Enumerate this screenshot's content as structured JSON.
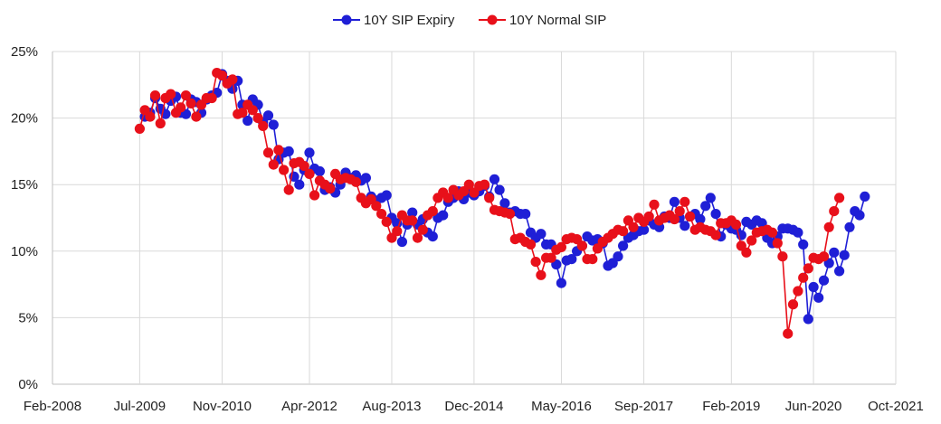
{
  "chart_data": {
    "type": "line",
    "title": "",
    "xlabel": "",
    "ylabel": "",
    "x_axis": {
      "min": "2008-02-01",
      "max": "2021-10-01",
      "ticks": [
        {
          "date": "2008-02-01",
          "label": "Feb-2008"
        },
        {
          "date": "2009-07-01",
          "label": "Jul-2009"
        },
        {
          "date": "2010-11-01",
          "label": "Nov-2010"
        },
        {
          "date": "2012-04-01",
          "label": "Apr-2012"
        },
        {
          "date": "2013-08-01",
          "label": "Aug-2013"
        },
        {
          "date": "2014-12-01",
          "label": "Dec-2014"
        },
        {
          "date": "2016-05-01",
          "label": "May-2016"
        },
        {
          "date": "2017-09-01",
          "label": "Sep-2017"
        },
        {
          "date": "2019-02-01",
          "label": "Feb-2019"
        },
        {
          "date": "2020-06-01",
          "label": "Jun-2020"
        },
        {
          "date": "2021-10-01",
          "label": "Oct-2021"
        }
      ]
    },
    "y_axis": {
      "min": 0,
      "max": 25,
      "ticks": [
        {
          "value": 0,
          "label": "0%"
        },
        {
          "value": 5,
          "label": "5%"
        },
        {
          "value": 10,
          "label": "10%"
        },
        {
          "value": 15,
          "label": "15%"
        },
        {
          "value": 20,
          "label": "20%"
        },
        {
          "value": 25,
          "label": "25%"
        }
      ]
    },
    "grid": true,
    "legend_position": "top-center",
    "series": [
      {
        "name": "10Y SIP Expiry",
        "color": "#1f1fd6",
        "points": [
          [
            "2009-08",
            20.1
          ],
          [
            "2009-09",
            20.4
          ],
          [
            "2009-10",
            21.5
          ],
          [
            "2009-11",
            20.7
          ],
          [
            "2009-12",
            20.3
          ],
          [
            "2010-01",
            21.3
          ],
          [
            "2010-02",
            21.6
          ],
          [
            "2010-03",
            20.4
          ],
          [
            "2010-04",
            20.3
          ],
          [
            "2010-05",
            21.4
          ],
          [
            "2010-06",
            21.2
          ],
          [
            "2010-07",
            20.4
          ],
          [
            "2010-08",
            21.4
          ],
          [
            "2010-09",
            21.7
          ],
          [
            "2010-10",
            21.9
          ],
          [
            "2010-11",
            23.3
          ],
          [
            "2010-12",
            22.8
          ],
          [
            "2011-01",
            22.2
          ],
          [
            "2011-02",
            22.8
          ],
          [
            "2011-03",
            21.0
          ],
          [
            "2011-04",
            19.8
          ],
          [
            "2011-05",
            21.4
          ],
          [
            "2011-06",
            21.0
          ],
          [
            "2011-07",
            19.7
          ],
          [
            "2011-08",
            20.2
          ],
          [
            "2011-09",
            19.5
          ],
          [
            "2011-10",
            16.9
          ],
          [
            "2011-11",
            17.4
          ],
          [
            "2011-12",
            17.5
          ],
          [
            "2012-01",
            15.6
          ],
          [
            "2012-02",
            15.0
          ],
          [
            "2012-03",
            16.1
          ],
          [
            "2012-04",
            17.4
          ],
          [
            "2012-05",
            16.2
          ],
          [
            "2012-06",
            16.0
          ],
          [
            "2012-07",
            14.6
          ],
          [
            "2012-08",
            14.8
          ],
          [
            "2012-09",
            14.4
          ],
          [
            "2012-10",
            15.0
          ],
          [
            "2012-11",
            15.9
          ],
          [
            "2012-12",
            15.5
          ],
          [
            "2013-01",
            15.7
          ],
          [
            "2013-02",
            15.3
          ],
          [
            "2013-03",
            15.5
          ],
          [
            "2013-04",
            14.1
          ],
          [
            "2013-05",
            13.8
          ],
          [
            "2013-06",
            14.0
          ],
          [
            "2013-07",
            14.2
          ],
          [
            "2013-08",
            12.5
          ],
          [
            "2013-09",
            12.1
          ],
          [
            "2013-10",
            10.7
          ],
          [
            "2013-11",
            12.0
          ],
          [
            "2013-12",
            12.9
          ],
          [
            "2014-01",
            12.0
          ],
          [
            "2014-02",
            12.4
          ],
          [
            "2014-03",
            11.4
          ],
          [
            "2014-04",
            11.1
          ],
          [
            "2014-05",
            12.5
          ],
          [
            "2014-06",
            12.7
          ],
          [
            "2014-07",
            13.7
          ],
          [
            "2014-08",
            14.0
          ],
          [
            "2014-09",
            14.5
          ],
          [
            "2014-10",
            13.9
          ],
          [
            "2014-11",
            14.4
          ],
          [
            "2014-12",
            14.2
          ],
          [
            "2015-01",
            14.5
          ],
          [
            "2015-02",
            14.9
          ],
          [
            "2015-03",
            14.1
          ],
          [
            "2015-04",
            15.4
          ],
          [
            "2015-05",
            14.6
          ],
          [
            "2015-06",
            13.6
          ],
          [
            "2015-07",
            12.9
          ],
          [
            "2015-08",
            13.0
          ],
          [
            "2015-09",
            12.8
          ],
          [
            "2015-10",
            12.8
          ],
          [
            "2015-11",
            11.4
          ],
          [
            "2015-12",
            11.0
          ],
          [
            "2016-01",
            11.3
          ],
          [
            "2016-02",
            10.5
          ],
          [
            "2016-03",
            10.5
          ],
          [
            "2016-04",
            9.0
          ],
          [
            "2016-05",
            7.6
          ],
          [
            "2016-06",
            9.3
          ],
          [
            "2016-07",
            9.4
          ],
          [
            "2016-08",
            10.0
          ],
          [
            "2016-09",
            10.4
          ],
          [
            "2016-10",
            11.1
          ],
          [
            "2016-11",
            10.8
          ],
          [
            "2016-12",
            10.9
          ],
          [
            "2017-01",
            10.6
          ],
          [
            "2017-02",
            8.9
          ],
          [
            "2017-03",
            9.1
          ],
          [
            "2017-04",
            9.6
          ],
          [
            "2017-05",
            10.4
          ],
          [
            "2017-06",
            11.0
          ],
          [
            "2017-07",
            11.2
          ],
          [
            "2017-08",
            11.5
          ],
          [
            "2017-09",
            11.6
          ],
          [
            "2017-10",
            12.3
          ],
          [
            "2017-11",
            12.0
          ],
          [
            "2017-12",
            11.8
          ],
          [
            "2018-01",
            12.6
          ],
          [
            "2018-02",
            12.5
          ],
          [
            "2018-03",
            13.7
          ],
          [
            "2018-04",
            12.5
          ],
          [
            "2018-05",
            11.9
          ],
          [
            "2018-06",
            12.6
          ],
          [
            "2018-07",
            12.8
          ],
          [
            "2018-08",
            12.4
          ],
          [
            "2018-09",
            13.4
          ],
          [
            "2018-10",
            14.0
          ],
          [
            "2018-11",
            12.8
          ],
          [
            "2018-12",
            11.1
          ],
          [
            "2019-01",
            12.0
          ],
          [
            "2019-02",
            11.7
          ],
          [
            "2019-03",
            11.6
          ],
          [
            "2019-04",
            11.2
          ],
          [
            "2019-05",
            12.2
          ],
          [
            "2019-06",
            12.0
          ],
          [
            "2019-07",
            12.3
          ],
          [
            "2019-08",
            12.1
          ],
          [
            "2019-09",
            11.0
          ],
          [
            "2019-10",
            10.6
          ],
          [
            "2019-11",
            11.1
          ],
          [
            "2019-12",
            11.7
          ],
          [
            "2020-01",
            11.7
          ],
          [
            "2020-02",
            11.6
          ],
          [
            "2020-03",
            11.4
          ],
          [
            "2020-04",
            10.5
          ],
          [
            "2020-05",
            4.9
          ],
          [
            "2020-06",
            7.3
          ],
          [
            "2020-07",
            6.5
          ],
          [
            "2020-08",
            7.8
          ],
          [
            "2020-09",
            9.1
          ],
          [
            "2020-10",
            9.9
          ],
          [
            "2020-11",
            8.5
          ],
          [
            "2020-12",
            9.7
          ],
          [
            "2021-01",
            11.8
          ],
          [
            "2021-02",
            13.0
          ],
          [
            "2021-03",
            12.7
          ],
          [
            "2021-04",
            14.1
          ]
        ]
      },
      {
        "name": "10Y Normal SIP",
        "color": "#e8101a",
        "points": [
          [
            "2009-07",
            19.2
          ],
          [
            "2009-08",
            20.6
          ],
          [
            "2009-09",
            20.1
          ],
          [
            "2009-10",
            21.7
          ],
          [
            "2009-11",
            19.6
          ],
          [
            "2009-12",
            21.5
          ],
          [
            "2010-01",
            21.8
          ],
          [
            "2010-02",
            20.4
          ],
          [
            "2010-03",
            20.8
          ],
          [
            "2010-04",
            21.7
          ],
          [
            "2010-05",
            21.1
          ],
          [
            "2010-06",
            20.1
          ],
          [
            "2010-07",
            21.0
          ],
          [
            "2010-08",
            21.5
          ],
          [
            "2010-09",
            21.5
          ],
          [
            "2010-10",
            23.4
          ],
          [
            "2010-11",
            23.2
          ],
          [
            "2010-12",
            22.6
          ],
          [
            "2011-01",
            22.9
          ],
          [
            "2011-02",
            20.3
          ],
          [
            "2011-03",
            20.4
          ],
          [
            "2011-04",
            21.0
          ],
          [
            "2011-05",
            20.6
          ],
          [
            "2011-06",
            20.0
          ],
          [
            "2011-07",
            19.4
          ],
          [
            "2011-08",
            17.4
          ],
          [
            "2011-09",
            16.5
          ],
          [
            "2011-10",
            17.6
          ],
          [
            "2011-11",
            16.1
          ],
          [
            "2011-12",
            14.6
          ],
          [
            "2012-01",
            16.6
          ],
          [
            "2012-02",
            16.7
          ],
          [
            "2012-03",
            16.4
          ],
          [
            "2012-04",
            15.8
          ],
          [
            "2012-05",
            14.2
          ],
          [
            "2012-06",
            15.3
          ],
          [
            "2012-07",
            15.0
          ],
          [
            "2012-08",
            14.7
          ],
          [
            "2012-09",
            15.8
          ],
          [
            "2012-10",
            15.4
          ],
          [
            "2012-11",
            15.5
          ],
          [
            "2012-12",
            15.4
          ],
          [
            "2013-01",
            15.2
          ],
          [
            "2013-02",
            14.0
          ],
          [
            "2013-03",
            13.6
          ],
          [
            "2013-04",
            13.9
          ],
          [
            "2013-05",
            13.4
          ],
          [
            "2013-06",
            12.8
          ],
          [
            "2013-07",
            12.2
          ],
          [
            "2013-08",
            11.0
          ],
          [
            "2013-09",
            11.5
          ],
          [
            "2013-10",
            12.7
          ],
          [
            "2013-11",
            12.3
          ],
          [
            "2013-12",
            12.3
          ],
          [
            "2014-01",
            11.0
          ],
          [
            "2014-02",
            11.6
          ],
          [
            "2014-03",
            12.7
          ],
          [
            "2014-04",
            13.0
          ],
          [
            "2014-05",
            14.0
          ],
          [
            "2014-06",
            14.4
          ],
          [
            "2014-07",
            14.0
          ],
          [
            "2014-08",
            14.6
          ],
          [
            "2014-09",
            14.2
          ],
          [
            "2014-10",
            14.5
          ],
          [
            "2014-11",
            15.0
          ],
          [
            "2014-12",
            14.4
          ],
          [
            "2015-01",
            14.9
          ],
          [
            "2015-02",
            15.0
          ],
          [
            "2015-03",
            14.0
          ],
          [
            "2015-04",
            13.1
          ],
          [
            "2015-05",
            13.0
          ],
          [
            "2015-06",
            12.9
          ],
          [
            "2015-07",
            12.8
          ],
          [
            "2015-08",
            10.9
          ],
          [
            "2015-09",
            11.0
          ],
          [
            "2015-10",
            10.7
          ],
          [
            "2015-11",
            10.5
          ],
          [
            "2015-12",
            9.2
          ],
          [
            "2016-01",
            8.2
          ],
          [
            "2016-02",
            9.5
          ],
          [
            "2016-03",
            9.5
          ],
          [
            "2016-04",
            10.1
          ],
          [
            "2016-05",
            10.3
          ],
          [
            "2016-06",
            10.9
          ],
          [
            "2016-07",
            11.0
          ],
          [
            "2016-08",
            10.9
          ],
          [
            "2016-09",
            10.4
          ],
          [
            "2016-10",
            9.4
          ],
          [
            "2016-11",
            9.4
          ],
          [
            "2016-12",
            10.2
          ],
          [
            "2017-01",
            10.7
          ],
          [
            "2017-02",
            11.0
          ],
          [
            "2017-03",
            11.3
          ],
          [
            "2017-04",
            11.6
          ],
          [
            "2017-05",
            11.5
          ],
          [
            "2017-06",
            12.3
          ],
          [
            "2017-07",
            11.8
          ],
          [
            "2017-08",
            12.5
          ],
          [
            "2017-09",
            12.2
          ],
          [
            "2017-10",
            12.6
          ],
          [
            "2017-11",
            13.5
          ],
          [
            "2017-12",
            12.3
          ],
          [
            "2018-01",
            12.5
          ],
          [
            "2018-02",
            12.7
          ],
          [
            "2018-03",
            12.4
          ],
          [
            "2018-04",
            13.0
          ],
          [
            "2018-05",
            13.7
          ],
          [
            "2018-06",
            12.6
          ],
          [
            "2018-07",
            11.6
          ],
          [
            "2018-08",
            11.8
          ],
          [
            "2018-09",
            11.6
          ],
          [
            "2018-10",
            11.5
          ],
          [
            "2018-11",
            11.2
          ],
          [
            "2018-12",
            12.1
          ],
          [
            "2019-01",
            12.1
          ],
          [
            "2019-02",
            12.3
          ],
          [
            "2019-03",
            12.0
          ],
          [
            "2019-04",
            10.4
          ],
          [
            "2019-05",
            9.9
          ],
          [
            "2019-06",
            10.8
          ],
          [
            "2019-07",
            11.4
          ],
          [
            "2019-08",
            11.5
          ],
          [
            "2019-09",
            11.6
          ],
          [
            "2019-10",
            11.4
          ],
          [
            "2019-11",
            10.6
          ],
          [
            "2019-12",
            9.6
          ],
          [
            "2020-01",
            3.8
          ],
          [
            "2020-02",
            6.0
          ],
          [
            "2020-03",
            7.0
          ],
          [
            "2020-04",
            8.0
          ],
          [
            "2020-05",
            8.7
          ],
          [
            "2020-06",
            9.5
          ],
          [
            "2020-07",
            9.4
          ],
          [
            "2020-08",
            9.6
          ],
          [
            "2020-09",
            11.8
          ],
          [
            "2020-10",
            13.0
          ],
          [
            "2020-11",
            14.0
          ]
        ]
      }
    ]
  }
}
